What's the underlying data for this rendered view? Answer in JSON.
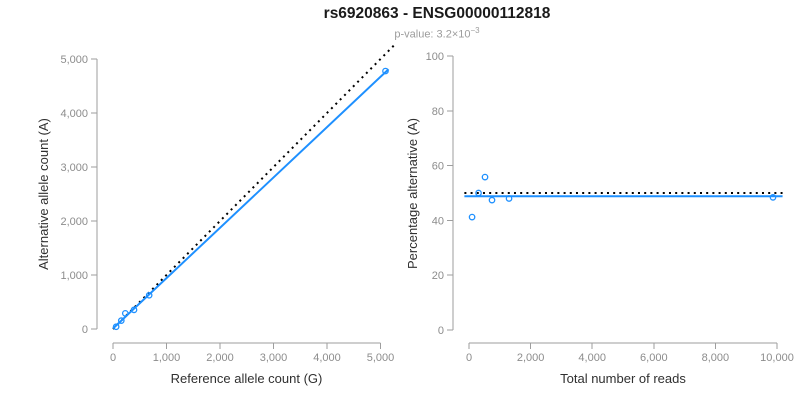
{
  "header": {
    "title": "rs6920863 - ENSG00000112818",
    "subtitle_prefix": "p-value: 3.2×10",
    "subtitle_exponent": "−3"
  },
  "colors": {
    "accent_blue": "#1E90FF",
    "dotted_black": "#000000",
    "axis_gray": "#9e9e9e",
    "tick_label_gray": "#8c8c8c",
    "axis_title_dark": "#303030",
    "subtitle_gray": "#9c9c9c"
  },
  "chart_data": [
    {
      "type": "scatter",
      "name": "allele-count-scatter",
      "xlabel": "Reference allele count (G)",
      "ylabel": "Alternative allele count (A)",
      "xlim": [
        0,
        5000
      ],
      "ylim": [
        0,
        5000
      ],
      "grid": false,
      "xticks": {
        "values": [
          0,
          1000,
          2000,
          3000,
          4000,
          5000
        ],
        "labels": [
          "0",
          "1,000",
          "2,000",
          "3,000",
          "4,000",
          "5,000"
        ]
      },
      "yticks": {
        "values": [
          0,
          1000,
          2000,
          3000,
          4000,
          5000
        ],
        "labels": [
          "0",
          "1,000",
          "2,000",
          "3,000",
          "4,000",
          "5,000"
        ]
      },
      "points": [
        [
          59,
          41
        ],
        [
          155,
          155
        ],
        [
          230,
          290
        ],
        [
          393,
          354
        ],
        [
          676,
          624
        ],
        [
          5093,
          4777
        ]
      ],
      "lines": [
        {
          "name": "identity-line",
          "style": "dotted",
          "color": "#000000",
          "x": [
            0,
            5250
          ],
          "y": [
            0,
            5250
          ]
        },
        {
          "name": "fit-line",
          "style": "solid",
          "color": "#1E90FF",
          "x": [
            0,
            5150
          ],
          "y": [
            10,
            4810
          ]
        }
      ]
    },
    {
      "type": "scatter",
      "name": "percentage-vs-reads-scatter",
      "xlabel": "Total number of reads",
      "ylabel": "Percentage alternative (A)",
      "xlim": [
        0,
        10000
      ],
      "ylim": [
        0,
        100
      ],
      "grid": false,
      "xticks": {
        "values": [
          0,
          2000,
          4000,
          6000,
          8000,
          10000
        ],
        "labels": [
          "0",
          "2,000",
          "4,000",
          "6,000",
          "8,000",
          "10,000"
        ]
      },
      "yticks": {
        "values": [
          0,
          20,
          40,
          60,
          80,
          100
        ],
        "labels": [
          "0",
          "20",
          "40",
          "60",
          "80",
          "100"
        ]
      },
      "points": [
        [
          100,
          41.2
        ],
        [
          310,
          50
        ],
        [
          520,
          55.8
        ],
        [
          747,
          47.4
        ],
        [
          1300,
          48
        ],
        [
          9870,
          48.4
        ]
      ],
      "lines": [
        {
          "name": "expected-50pct-line",
          "style": "dotted",
          "color": "#000000",
          "x": [
            -150,
            10180
          ],
          "y": [
            50,
            50
          ]
        },
        {
          "name": "fit-line",
          "style": "solid",
          "color": "#1E90FF",
          "x": [
            -150,
            10180
          ],
          "y": [
            48.8,
            48.8
          ]
        }
      ]
    }
  ]
}
